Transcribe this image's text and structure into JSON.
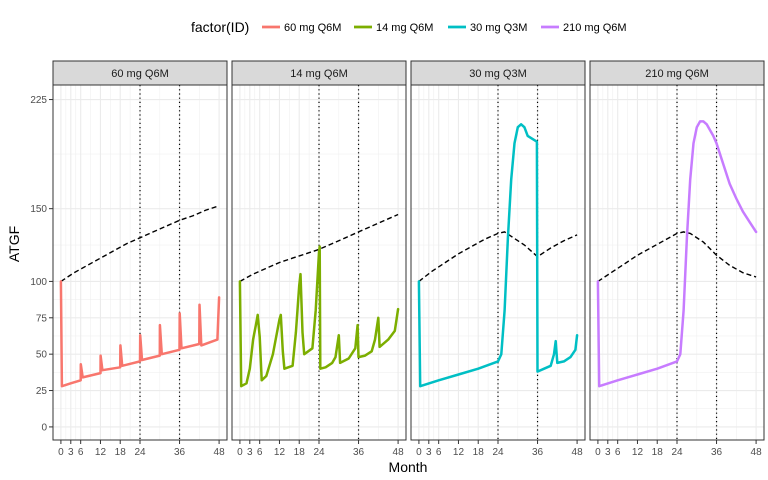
{
  "chart_data": {
    "type": "line",
    "xlabel": "Month",
    "ylabel": "ATGF",
    "xlim": [
      -2.4,
      50.4
    ],
    "ylim": [
      -9,
      235
    ],
    "x_ticks": [
      0,
      3,
      6,
      12,
      18,
      24,
      36,
      48
    ],
    "x_tick_labels": [
      "0",
      "3",
      "6",
      "12",
      "18",
      "24",
      "36",
      "48"
    ],
    "y_ticks": [
      0,
      25,
      50,
      75,
      100,
      150,
      225
    ],
    "y_tick_labels": [
      "0",
      "25",
      "50",
      "75",
      "100",
      "150",
      "225"
    ],
    "grid": true,
    "legend": {
      "title": "factor(ID)",
      "placement": "top",
      "entries": [
        {
          "label": "60 mg Q6M",
          "color": "#F8766D"
        },
        {
          "label": "14 mg Q6M",
          "color": "#7CAE00"
        },
        {
          "label": "30 mg Q3M",
          "color": "#00BFC4"
        },
        {
          "label": "210 mg Q6M",
          "color": "#C77CFF"
        }
      ]
    },
    "reference_line_style": "dotted, black, at x = 24 and x = 36",
    "dashed_line_style": "dashed, black",
    "facets": [
      {
        "strip_label": "60 mg Q6M",
        "color": "#F8766D",
        "reference_lines": [
          24,
          36
        ],
        "dashed_line": [
          [
            0,
            100
          ],
          [
            4,
            106
          ],
          [
            8,
            111
          ],
          [
            12,
            116
          ],
          [
            16,
            121
          ],
          [
            20,
            126
          ],
          [
            24,
            130
          ],
          [
            28,
            134
          ],
          [
            32,
            138
          ],
          [
            36,
            142
          ],
          [
            40,
            145
          ],
          [
            44,
            149
          ],
          [
            48,
            152
          ]
        ],
        "solid_line": [
          [
            0,
            100
          ],
          [
            0.3,
            28
          ],
          [
            3,
            30
          ],
          [
            6,
            32
          ],
          [
            6.05,
            43
          ],
          [
            6.6,
            34
          ],
          [
            12,
            37
          ],
          [
            12.05,
            49
          ],
          [
            12.6,
            39
          ],
          [
            18,
            41
          ],
          [
            18.05,
            56
          ],
          [
            18.6,
            42
          ],
          [
            24,
            45
          ],
          [
            24.05,
            63
          ],
          [
            24.6,
            46
          ],
          [
            30,
            49
          ],
          [
            30.05,
            70
          ],
          [
            30.6,
            50
          ],
          [
            36,
            53
          ],
          [
            36.05,
            78
          ],
          [
            36.6,
            54
          ],
          [
            42,
            57
          ],
          [
            42.05,
            84
          ],
          [
            42.6,
            56
          ],
          [
            47.5,
            60
          ],
          [
            48,
            89
          ]
        ]
      },
      {
        "strip_label": "14 mg Q6M",
        "color": "#7CAE00",
        "reference_lines": [
          24,
          36
        ],
        "dashed_line": [
          [
            0,
            100
          ],
          [
            4,
            105
          ],
          [
            8,
            109
          ],
          [
            12,
            113
          ],
          [
            16,
            116
          ],
          [
            20,
            119
          ],
          [
            24,
            122
          ],
          [
            28,
            126
          ],
          [
            32,
            130
          ],
          [
            36,
            134
          ],
          [
            40,
            138
          ],
          [
            44,
            142
          ],
          [
            48,
            146
          ]
        ],
        "solid_line": [
          [
            0,
            100
          ],
          [
            0.4,
            28
          ],
          [
            2,
            30
          ],
          [
            3,
            40
          ],
          [
            4,
            60
          ],
          [
            5,
            72
          ],
          [
            5.4,
            77
          ],
          [
            6,
            62
          ],
          [
            6.6,
            32
          ],
          [
            8,
            35
          ],
          [
            10,
            50
          ],
          [
            12,
            74
          ],
          [
            12.4,
            77
          ],
          [
            13,
            52
          ],
          [
            13.5,
            40
          ],
          [
            16,
            42
          ],
          [
            17,
            65
          ],
          [
            18,
            97
          ],
          [
            18.4,
            105
          ],
          [
            19,
            65
          ],
          [
            19.5,
            50
          ],
          [
            22,
            54
          ],
          [
            23,
            80
          ],
          [
            24,
            120
          ],
          [
            24.2,
            124
          ],
          [
            24.4,
            40
          ],
          [
            26,
            41
          ],
          [
            28,
            44
          ],
          [
            29,
            48
          ],
          [
            30,
            63
          ],
          [
            30.4,
            44
          ],
          [
            33,
            47
          ],
          [
            35,
            54
          ],
          [
            35.7,
            70
          ],
          [
            36,
            48
          ],
          [
            38,
            49
          ],
          [
            40,
            52
          ],
          [
            41,
            60
          ],
          [
            42,
            75
          ],
          [
            42.4,
            55
          ],
          [
            45,
            60
          ],
          [
            47,
            66
          ],
          [
            48,
            81
          ]
        ]
      },
      {
        "strip_label": "30 mg Q3M",
        "color": "#00BFC4",
        "reference_lines": [
          24,
          36
        ],
        "dashed_line": [
          [
            0,
            100
          ],
          [
            4,
            107
          ],
          [
            8,
            113
          ],
          [
            12,
            119
          ],
          [
            16,
            124
          ],
          [
            20,
            129
          ],
          [
            24,
            133
          ],
          [
            26,
            134
          ],
          [
            28,
            131
          ],
          [
            32,
            125
          ],
          [
            36,
            117
          ],
          [
            40,
            123
          ],
          [
            44,
            128
          ],
          [
            48,
            132
          ]
        ],
        "solid_line": [
          [
            0,
            100
          ],
          [
            0.4,
            28
          ],
          [
            6,
            32
          ],
          [
            12,
            36
          ],
          [
            18,
            40
          ],
          [
            24,
            45
          ],
          [
            25,
            50
          ],
          [
            26,
            80
          ],
          [
            27,
            130
          ],
          [
            28,
            170
          ],
          [
            29,
            195
          ],
          [
            30,
            206
          ],
          [
            31,
            208
          ],
          [
            32,
            206
          ],
          [
            33,
            200
          ],
          [
            35.8,
            196
          ],
          [
            36,
            38
          ],
          [
            38,
            40
          ],
          [
            40,
            42
          ],
          [
            41,
            50
          ],
          [
            41.5,
            59
          ],
          [
            42,
            44
          ],
          [
            44,
            45
          ],
          [
            46,
            48
          ],
          [
            47.5,
            53
          ],
          [
            48,
            63
          ]
        ]
      },
      {
        "strip_label": "210 mg Q6M",
        "color": "#C77CFF",
        "reference_lines": [
          24,
          36
        ],
        "dashed_line": [
          [
            0,
            100
          ],
          [
            4,
            106
          ],
          [
            8,
            112
          ],
          [
            12,
            118
          ],
          [
            16,
            123
          ],
          [
            20,
            128
          ],
          [
            24,
            133
          ],
          [
            26,
            134
          ],
          [
            28,
            133
          ],
          [
            32,
            127
          ],
          [
            36,
            118
          ],
          [
            40,
            111
          ],
          [
            44,
            106
          ],
          [
            48,
            103
          ]
        ],
        "solid_line": [
          [
            0,
            100
          ],
          [
            0.4,
            28
          ],
          [
            6,
            32
          ],
          [
            12,
            36
          ],
          [
            18,
            40
          ],
          [
            24,
            45
          ],
          [
            25,
            50
          ],
          [
            26,
            80
          ],
          [
            27,
            130
          ],
          [
            28,
            170
          ],
          [
            29,
            195
          ],
          [
            30,
            206
          ],
          [
            31,
            210
          ],
          [
            32,
            210
          ],
          [
            33,
            208
          ],
          [
            35,
            200
          ],
          [
            36,
            195
          ],
          [
            38,
            181
          ],
          [
            40,
            167
          ],
          [
            42,
            157
          ],
          [
            44,
            148
          ],
          [
            46,
            141
          ],
          [
            48,
            134
          ]
        ]
      }
    ]
  }
}
